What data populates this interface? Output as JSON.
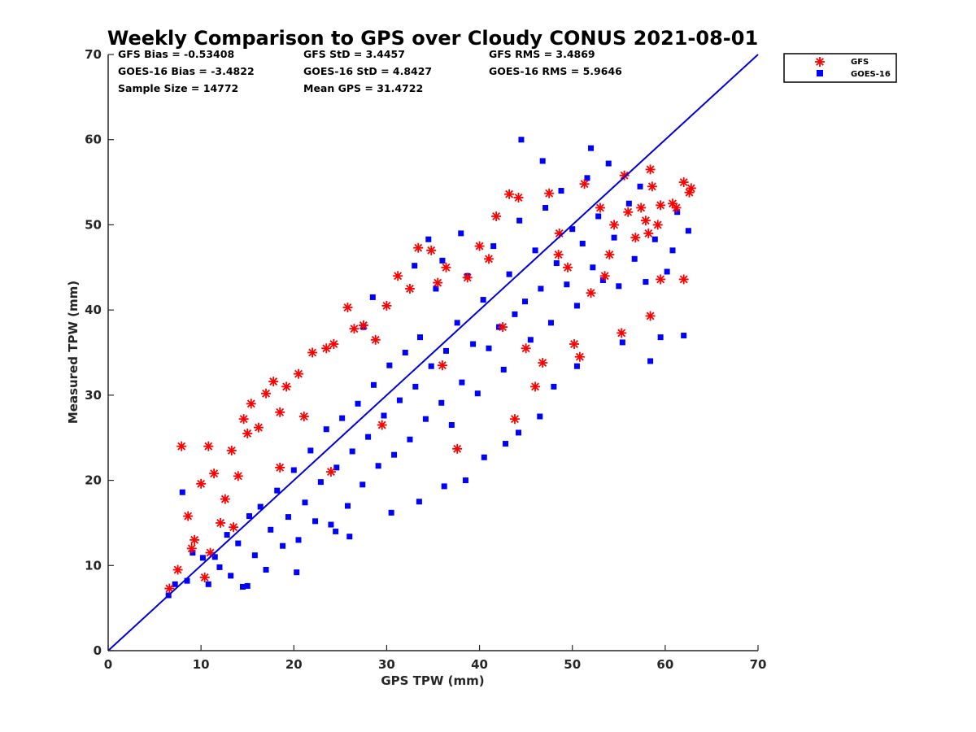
{
  "chart_data": {
    "type": "scatter",
    "title": "Weekly Comparison to GPS over Cloudy CONUS 2021-08-01",
    "xlabel": "GPS TPW (mm)",
    "ylabel": "Measured TPW (mm)",
    "xlim": [
      0,
      70
    ],
    "ylim": [
      0,
      70
    ],
    "xticks": [
      "0",
      "10",
      "20",
      "30",
      "40",
      "50",
      "60",
      "70"
    ],
    "yticks": [
      "0",
      "10",
      "20",
      "30",
      "40",
      "50",
      "60",
      "70"
    ],
    "grid": false,
    "legend_position": "outside top-right",
    "stats": [
      [
        "GFS Bias = -0.53408",
        "GFS StD = 3.4457",
        "GFS RMS = 3.4869"
      ],
      [
        "GOES-16 Bias = -3.4822",
        "GOES-16 StD = 4.8427",
        "GOES-16 RMS = 5.9646"
      ],
      [
        "Sample Size = 14772",
        "Mean GPS = 31.4722",
        ""
      ]
    ],
    "reference_line": {
      "x": [
        0,
        70
      ],
      "y": [
        0,
        70
      ],
      "color": "#0000dd"
    },
    "series": [
      {
        "name": "GOES-16",
        "marker": "square",
        "color": "#0000ff",
        "points": [
          [
            6.5,
            6.5
          ],
          [
            7.2,
            7.8
          ],
          [
            8.0,
            18.6
          ],
          [
            8.5,
            8.2
          ],
          [
            9.1,
            11.5
          ],
          [
            10.2,
            10.9
          ],
          [
            10.8,
            7.8
          ],
          [
            11.5,
            11.0
          ],
          [
            12.0,
            9.8
          ],
          [
            12.8,
            13.6
          ],
          [
            13.2,
            8.8
          ],
          [
            14.0,
            12.6
          ],
          [
            14.5,
            7.5
          ],
          [
            15.2,
            15.8
          ],
          [
            15.8,
            11.2
          ],
          [
            16.4,
            16.9
          ],
          [
            17.0,
            9.5
          ],
          [
            17.5,
            14.2
          ],
          [
            18.2,
            18.8
          ],
          [
            18.8,
            12.3
          ],
          [
            19.4,
            15.7
          ],
          [
            20.0,
            21.2
          ],
          [
            20.5,
            13.0
          ],
          [
            21.2,
            17.4
          ],
          [
            21.8,
            23.5
          ],
          [
            22.3,
            15.2
          ],
          [
            22.9,
            19.8
          ],
          [
            23.5,
            26.0
          ],
          [
            24.0,
            14.8
          ],
          [
            24.6,
            21.5
          ],
          [
            25.2,
            27.3
          ],
          [
            25.8,
            17.0
          ],
          [
            26.3,
            23.4
          ],
          [
            26.9,
            29.0
          ],
          [
            27.4,
            19.5
          ],
          [
            28.0,
            25.1
          ],
          [
            28.6,
            31.2
          ],
          [
            29.1,
            21.7
          ],
          [
            29.7,
            27.6
          ],
          [
            30.3,
            33.5
          ],
          [
            30.8,
            23.0
          ],
          [
            31.4,
            29.4
          ],
          [
            32.0,
            35.0
          ],
          [
            32.5,
            24.8
          ],
          [
            33.1,
            31.0
          ],
          [
            33.6,
            36.8
          ],
          [
            34.2,
            27.2
          ],
          [
            34.8,
            33.4
          ],
          [
            35.3,
            42.5
          ],
          [
            35.9,
            29.1
          ],
          [
            36.4,
            35.2
          ],
          [
            37.0,
            26.5
          ],
          [
            37.6,
            38.5
          ],
          [
            38.1,
            31.5
          ],
          [
            38.7,
            44.0
          ],
          [
            39.3,
            36.0
          ],
          [
            39.8,
            30.2
          ],
          [
            40.4,
            41.2
          ],
          [
            41.0,
            35.5
          ],
          [
            41.5,
            47.5
          ],
          [
            42.1,
            38.0
          ],
          [
            42.6,
            33.0
          ],
          [
            43.2,
            44.2
          ],
          [
            43.8,
            39.5
          ],
          [
            44.3,
            50.5
          ],
          [
            44.9,
            41.0
          ],
          [
            45.5,
            36.5
          ],
          [
            46.0,
            47.0
          ],
          [
            46.6,
            42.5
          ],
          [
            47.1,
            52.0
          ],
          [
            47.7,
            38.5
          ],
          [
            48.3,
            45.5
          ],
          [
            48.8,
            54.0
          ],
          [
            49.4,
            43.0
          ],
          [
            50.0,
            49.5
          ],
          [
            50.5,
            40.5
          ],
          [
            51.1,
            47.8
          ],
          [
            51.6,
            55.5
          ],
          [
            52.2,
            45.0
          ],
          [
            52.8,
            51.0
          ],
          [
            53.3,
            43.5
          ],
          [
            53.9,
            57.2
          ],
          [
            54.5,
            48.5
          ],
          [
            55.0,
            42.8
          ],
          [
            55.4,
            36.2
          ],
          [
            56.1,
            52.5
          ],
          [
            56.7,
            46.0
          ],
          [
            57.3,
            54.5
          ],
          [
            57.9,
            43.3
          ],
          [
            58.4,
            34.0
          ],
          [
            58.9,
            48.3
          ],
          [
            59.5,
            36.8
          ],
          [
            60.2,
            44.5
          ],
          [
            60.8,
            47.0
          ],
          [
            61.3,
            51.5
          ],
          [
            62.0,
            37.0
          ],
          [
            62.5,
            49.3
          ],
          [
            44.5,
            60.0
          ],
          [
            46.8,
            57.5
          ],
          [
            52.0,
            59.0
          ],
          [
            36.0,
            45.8
          ],
          [
            38.0,
            49.0
          ],
          [
            27.5,
            38.0
          ],
          [
            28.5,
            41.5
          ],
          [
            33.0,
            45.2
          ],
          [
            34.5,
            48.3
          ],
          [
            24.5,
            14.0
          ],
          [
            26.0,
            13.4
          ],
          [
            30.5,
            16.2
          ],
          [
            33.5,
            17.5
          ],
          [
            36.2,
            19.3
          ],
          [
            38.5,
            20.0
          ],
          [
            40.5,
            22.7
          ],
          [
            42.8,
            24.3
          ],
          [
            44.2,
            25.6
          ],
          [
            46.5,
            27.5
          ],
          [
            48.0,
            31.0
          ],
          [
            50.5,
            33.4
          ],
          [
            20.3,
            9.2
          ],
          [
            15.0,
            7.6
          ]
        ]
      },
      {
        "name": "GFS",
        "marker": "asterisk",
        "color": "#ff0000",
        "points": [
          [
            6.6,
            7.3
          ],
          [
            7.5,
            9.5
          ],
          [
            7.9,
            24.0
          ],
          [
            8.6,
            15.8
          ],
          [
            9.3,
            13.0
          ],
          [
            10.0,
            19.6
          ],
          [
            10.4,
            8.6
          ],
          [
            10.8,
            24.0
          ],
          [
            11.4,
            20.8
          ],
          [
            12.1,
            15.0
          ],
          [
            12.6,
            17.8
          ],
          [
            13.3,
            23.5
          ],
          [
            14.0,
            20.5
          ],
          [
            14.6,
            27.2
          ],
          [
            15.0,
            25.5
          ],
          [
            15.4,
            29.0
          ],
          [
            16.2,
            26.2
          ],
          [
            17.0,
            30.2
          ],
          [
            17.8,
            31.6
          ],
          [
            18.5,
            28.0
          ],
          [
            19.2,
            31.0
          ],
          [
            20.5,
            32.5
          ],
          [
            21.1,
            27.5
          ],
          [
            22.0,
            35.0
          ],
          [
            23.5,
            35.5
          ],
          [
            24.3,
            36.0
          ],
          [
            25.8,
            40.3
          ],
          [
            26.5,
            37.8
          ],
          [
            27.5,
            38.2
          ],
          [
            28.8,
            36.5
          ],
          [
            30.0,
            40.5
          ],
          [
            31.2,
            44.0
          ],
          [
            32.5,
            42.5
          ],
          [
            33.4,
            47.3
          ],
          [
            34.8,
            47.0
          ],
          [
            35.5,
            43.2
          ],
          [
            36.4,
            45.0
          ],
          [
            37.6,
            23.7
          ],
          [
            38.7,
            43.8
          ],
          [
            40.0,
            47.5
          ],
          [
            41.0,
            46.0
          ],
          [
            41.8,
            51.0
          ],
          [
            43.2,
            53.6
          ],
          [
            43.8,
            27.2
          ],
          [
            44.2,
            53.2
          ],
          [
            45.0,
            35.5
          ],
          [
            46.0,
            31.0
          ],
          [
            46.8,
            33.8
          ],
          [
            47.5,
            53.7
          ],
          [
            48.6,
            49.0
          ],
          [
            49.5,
            45.0
          ],
          [
            50.2,
            36.0
          ],
          [
            50.8,
            34.5
          ],
          [
            51.3,
            54.8
          ],
          [
            52.0,
            42.0
          ],
          [
            53.5,
            44.0
          ],
          [
            54.0,
            46.5
          ],
          [
            54.5,
            50.0
          ],
          [
            55.3,
            37.3
          ],
          [
            55.6,
            55.8
          ],
          [
            56.0,
            51.5
          ],
          [
            56.8,
            48.5
          ],
          [
            57.4,
            52.0
          ],
          [
            57.9,
            50.5
          ],
          [
            58.2,
            49.0
          ],
          [
            58.4,
            56.5
          ],
          [
            58.6,
            54.5
          ],
          [
            58.4,
            39.3
          ],
          [
            59.2,
            50.0
          ],
          [
            59.5,
            52.3
          ],
          [
            59.5,
            43.6
          ],
          [
            60.8,
            52.5
          ],
          [
            61.2,
            52.0
          ],
          [
            62.0,
            55.0
          ],
          [
            62.0,
            43.6
          ],
          [
            62.6,
            53.8
          ],
          [
            62.8,
            54.3
          ],
          [
            24.0,
            21.0
          ],
          [
            29.5,
            26.5
          ],
          [
            36.0,
            33.5
          ],
          [
            42.5,
            38.0
          ],
          [
            48.5,
            46.5
          ],
          [
            53.0,
            52.0
          ],
          [
            18.5,
            21.5
          ],
          [
            13.5,
            14.5
          ],
          [
            9.0,
            12.0
          ],
          [
            11.0,
            11.5
          ]
        ]
      }
    ]
  }
}
